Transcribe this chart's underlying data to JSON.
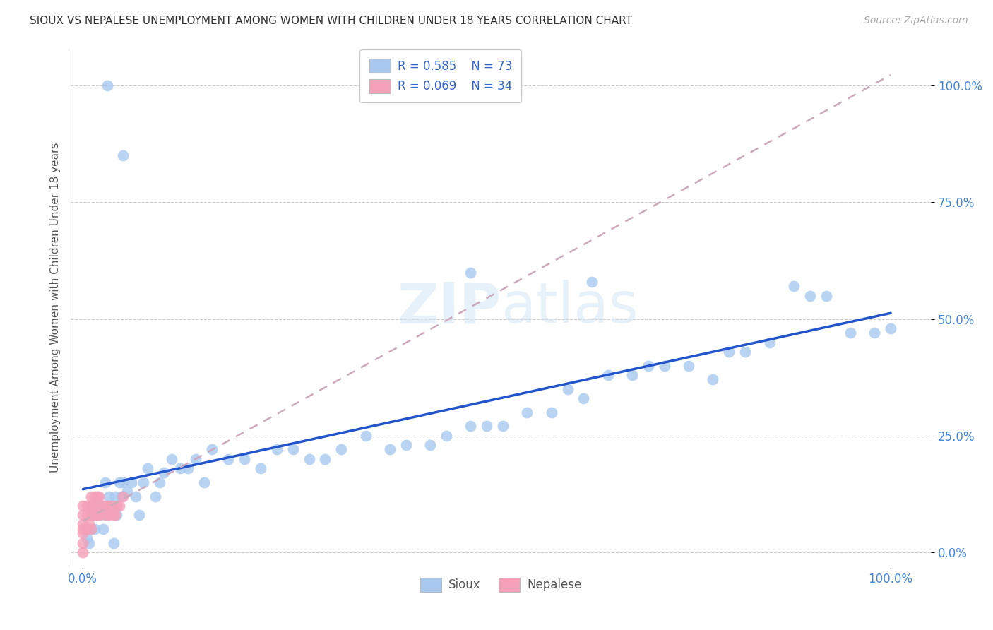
{
  "title": "SIOUX VS NEPALESE UNEMPLOYMENT AMONG WOMEN WITH CHILDREN UNDER 18 YEARS CORRELATION CHART",
  "source": "Source: ZipAtlas.com",
  "xlabel_sioux": "Sioux",
  "xlabel_nepalese": "Nepalese",
  "ylabel": "Unemployment Among Women with Children Under 18 years",
  "x_tick_labels_bottom": [
    "0.0%",
    "100.0%"
  ],
  "x_tick_vals_bottom": [
    0.0,
    1.0
  ],
  "y_tick_labels_right": [
    "0.0%",
    "25.0%",
    "50.0%",
    "75.0%",
    "100.0%"
  ],
  "y_tick_vals_right": [
    0.0,
    0.25,
    0.5,
    0.75,
    1.0
  ],
  "sioux_color": "#a8c8f0",
  "nepalese_color": "#f4a0b8",
  "sioux_line_color": "#2255cc",
  "nepalese_line_color": "#ccaabb",
  "legend_R_sioux": "R = 0.585",
  "legend_N_sioux": "N = 73",
  "legend_R_nepalese": "R = 0.069",
  "legend_N_nepalese": "N = 34",
  "watermark_zip": "ZIP",
  "watermark_atlas": "atlas",
  "background_color": "#ffffff",
  "grid_color": "#cccccc",
  "title_color": "#333333",
  "axis_label_color": "#555555",
  "tick_color_blue": "#4488dd",
  "legend_text_color": "#3366cc",
  "figsize": [
    14.06,
    8.92
  ],
  "dpi": 100,
  "sioux_x": [
    0.005,
    0.008,
    0.01,
    0.012,
    0.015,
    0.018,
    0.02,
    0.022,
    0.025,
    0.028,
    0.03,
    0.032,
    0.035,
    0.038,
    0.04,
    0.042,
    0.045,
    0.048,
    0.05,
    0.055,
    0.06,
    0.065,
    0.07,
    0.075,
    0.08,
    0.09,
    0.095,
    0.1,
    0.11,
    0.12,
    0.13,
    0.14,
    0.15,
    0.16,
    0.18,
    0.2,
    0.22,
    0.24,
    0.26,
    0.28,
    0.3,
    0.32,
    0.35,
    0.38,
    0.4,
    0.43,
    0.45,
    0.48,
    0.5,
    0.52,
    0.55,
    0.58,
    0.6,
    0.62,
    0.65,
    0.68,
    0.7,
    0.72,
    0.75,
    0.78,
    0.8,
    0.82,
    0.85,
    0.88,
    0.9,
    0.92,
    0.95,
    0.98,
    1.0,
    0.63,
    0.48,
    0.05,
    0.03
  ],
  "sioux_y": [
    0.03,
    0.02,
    0.05,
    0.08,
    0.05,
    0.1,
    0.1,
    0.08,
    0.05,
    0.15,
    0.08,
    0.12,
    0.1,
    0.02,
    0.12,
    0.08,
    0.15,
    0.12,
    0.15,
    0.13,
    0.15,
    0.12,
    0.08,
    0.15,
    0.18,
    0.12,
    0.15,
    0.17,
    0.2,
    0.18,
    0.18,
    0.2,
    0.15,
    0.22,
    0.2,
    0.2,
    0.18,
    0.22,
    0.22,
    0.2,
    0.2,
    0.22,
    0.25,
    0.22,
    0.23,
    0.23,
    0.25,
    0.27,
    0.27,
    0.27,
    0.3,
    0.3,
    0.35,
    0.33,
    0.38,
    0.38,
    0.4,
    0.4,
    0.4,
    0.37,
    0.43,
    0.43,
    0.45,
    0.57,
    0.55,
    0.55,
    0.47,
    0.47,
    0.48,
    0.58,
    0.6,
    0.85,
    1.0
  ],
  "nepalese_x": [
    0.0,
    0.0,
    0.0,
    0.0,
    0.0,
    0.0,
    0.0,
    0.005,
    0.005,
    0.005,
    0.008,
    0.01,
    0.01,
    0.01,
    0.01,
    0.012,
    0.012,
    0.015,
    0.015,
    0.018,
    0.018,
    0.02,
    0.02,
    0.022,
    0.025,
    0.028,
    0.03,
    0.032,
    0.035,
    0.038,
    0.04,
    0.042,
    0.045,
    0.05
  ],
  "nepalese_y": [
    0.0,
    0.02,
    0.04,
    0.05,
    0.06,
    0.08,
    0.1,
    0.05,
    0.08,
    0.1,
    0.06,
    0.05,
    0.08,
    0.1,
    0.12,
    0.08,
    0.1,
    0.08,
    0.12,
    0.08,
    0.12,
    0.08,
    0.12,
    0.1,
    0.1,
    0.08,
    0.1,
    0.08,
    0.1,
    0.08,
    0.08,
    0.1,
    0.1,
    0.12
  ]
}
